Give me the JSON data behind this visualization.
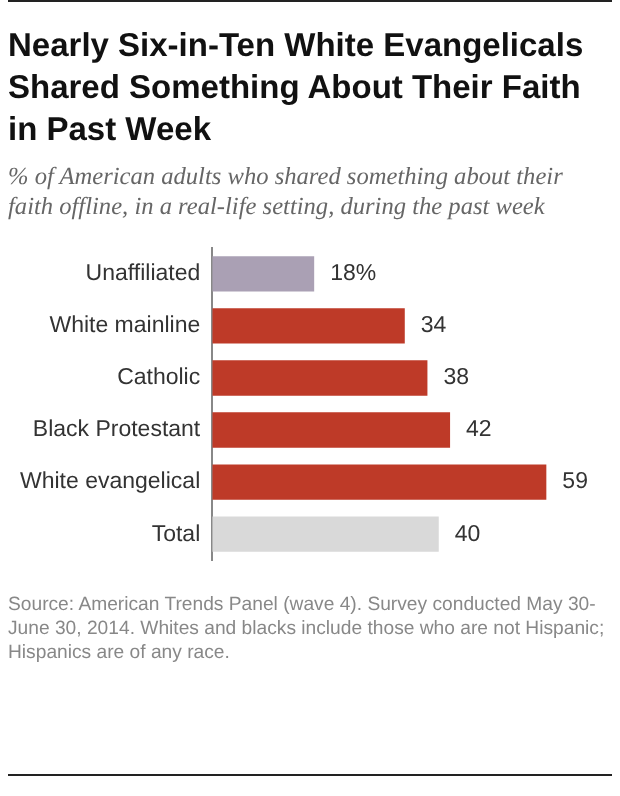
{
  "chart_data": {
    "type": "bar",
    "orientation": "horizontal",
    "title": "Nearly Six-in-Ten White Evangelicals Shared Something About Their Faith in Past Week",
    "subtitle": "% of American adults who shared something about their faith offline, in a real-life setting, during the past week",
    "categories": [
      "Unaffiliated",
      "White mainline",
      "Catholic",
      "Black Protestant",
      "White evangelical",
      "Total"
    ],
    "values": [
      18,
      34,
      38,
      42,
      59,
      40
    ],
    "colors": [
      "#aaa0b4",
      "#be3a28",
      "#be3a28",
      "#be3a28",
      "#be3a28",
      "#d9d9d9"
    ],
    "value_labels": [
      "18%",
      "34",
      "38",
      "42",
      "59",
      "40"
    ],
    "grid": false,
    "legend": false,
    "annotations": [
      "Source: American Trends Panel (wave 4). Survey conducted May 30-June 30, 2014. Whites and blacks include those who are not Hispanic; Hispanics are of any race."
    ]
  }
}
